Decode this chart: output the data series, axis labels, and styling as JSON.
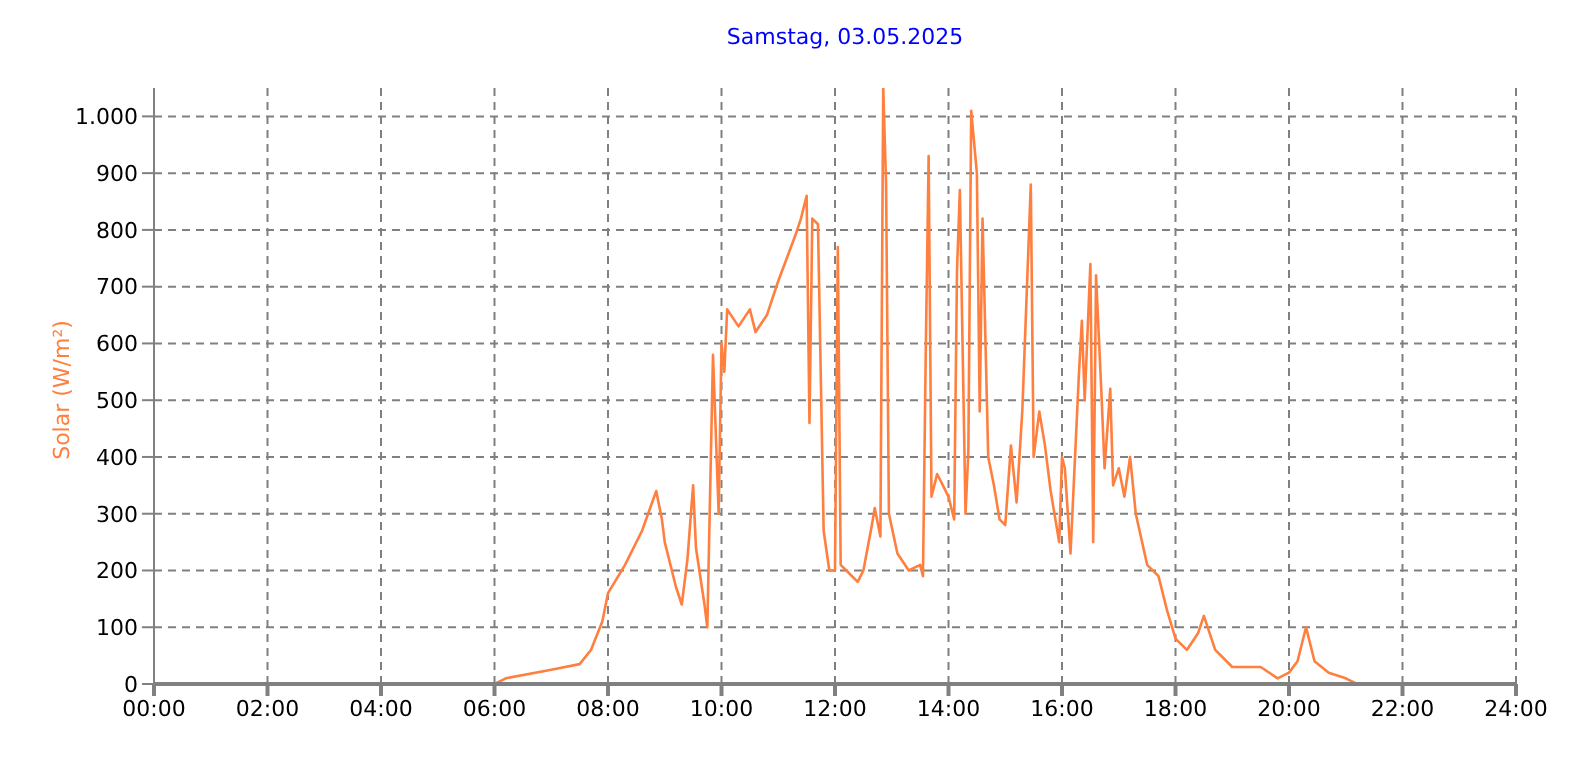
{
  "chart_data": {
    "type": "line",
    "title": "Samstag, 03.05.2025",
    "ylabel": "Solar (W/m²)",
    "x": [
      0,
      6.0,
      6.2,
      7,
      7.5,
      7.7,
      7.9,
      8.0,
      8.3,
      8.6,
      8.85,
      8.95,
      9.0,
      9.2,
      9.3,
      9.4,
      9.5,
      9.55,
      9.7,
      9.75,
      9.85,
      9.95,
      10.0,
      10.05,
      10.1,
      10.3,
      10.5,
      10.6,
      10.8,
      11.0,
      11.3,
      11.4,
      11.5,
      11.55,
      11.6,
      11.7,
      11.8,
      11.9,
      12.0,
      12.05,
      12.1,
      12.2,
      12.4,
      12.5,
      12.65,
      12.7,
      12.8,
      12.85,
      12.9,
      12.95,
      13.1,
      13.3,
      13.5,
      13.55,
      13.6,
      13.65,
      13.7,
      13.8,
      14.0,
      14.1,
      14.15,
      14.2,
      14.3,
      14.35,
      14.4,
      14.5,
      14.55,
      14.6,
      14.7,
      14.8,
      14.9,
      15.0,
      15.1,
      15.2,
      15.3,
      15.45,
      15.5,
      15.6,
      15.7,
      15.8,
      15.95,
      16.0,
      16.05,
      16.15,
      16.3,
      16.35,
      16.4,
      16.5,
      16.55,
      16.6,
      16.7,
      16.75,
      16.85,
      16.9,
      17.0,
      17.1,
      17.2,
      17.3,
      17.5,
      17.7,
      17.85,
      18.0,
      18.2,
      18.4,
      18.5,
      18.7,
      19.0,
      19.5,
      19.8,
      20.0,
      20.15,
      20.3,
      20.45,
      20.7,
      21.0,
      21.2,
      24
    ],
    "series": [
      {
        "color": "#ff7f3f",
        "values": [
          0,
          0,
          10,
          25,
          35,
          60,
          110,
          160,
          210,
          270,
          340,
          290,
          250,
          170,
          140,
          220,
          350,
          240,
          140,
          100,
          580,
          300,
          600,
          550,
          660,
          630,
          660,
          620,
          650,
          710,
          790,
          820,
          860,
          460,
          820,
          810,
          270,
          200,
          200,
          770,
          210,
          200,
          180,
          200,
          280,
          310,
          260,
          1050,
          880,
          300,
          230,
          200,
          210,
          190,
          590,
          930,
          330,
          370,
          330,
          290,
          730,
          870,
          300,
          410,
          1010,
          900,
          480,
          820,
          400,
          350,
          290,
          280,
          420,
          320,
          480,
          880,
          400,
          480,
          420,
          340,
          250,
          400,
          380,
          230,
          550,
          640,
          500,
          740,
          250,
          720,
          500,
          380,
          520,
          350,
          380,
          330,
          400,
          300,
          210,
          190,
          130,
          80,
          60,
          90,
          120,
          60,
          30,
          30,
          10,
          20,
          40,
          100,
          40,
          20,
          10,
          0,
          0
        ]
      }
    ],
    "xlim": [
      0,
      24
    ],
    "xticks": [
      {
        "value": 0,
        "label": "00:00"
      },
      {
        "value": 2,
        "label": "02:00"
      },
      {
        "value": 4,
        "label": "04:00"
      },
      {
        "value": 6,
        "label": "06:00"
      },
      {
        "value": 8,
        "label": "08:00"
      },
      {
        "value": 10,
        "label": "10:00"
      },
      {
        "value": 12,
        "label": "12:00"
      },
      {
        "value": 14,
        "label": "14:00"
      },
      {
        "value": 16,
        "label": "16:00"
      },
      {
        "value": 18,
        "label": "18:00"
      },
      {
        "value": 20,
        "label": "20:00"
      },
      {
        "value": 22,
        "label": "22:00"
      },
      {
        "value": 24,
        "label": "24:00"
      }
    ],
    "ylim": [
      0,
      1050
    ],
    "yticks": [
      0,
      100,
      200,
      300,
      400,
      500,
      600,
      700,
      800,
      900,
      {
        "value": 1000,
        "label": "1.000"
      }
    ],
    "grid": true,
    "line_style": "solid",
    "marker": "none"
  }
}
